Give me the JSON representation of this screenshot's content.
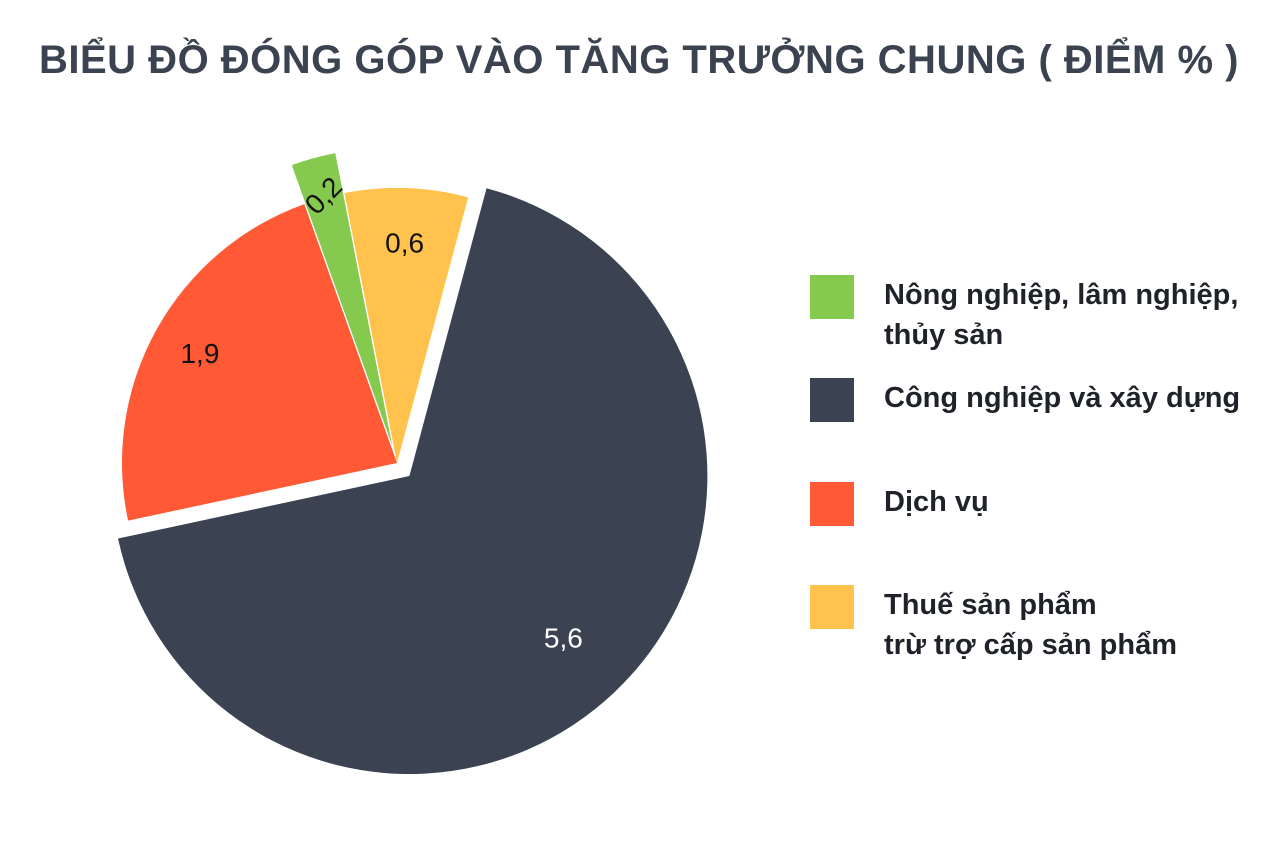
{
  "chart_data": {
    "type": "pie",
    "title": "BIỂU ĐỒ ĐÓNG GÓP VÀO TĂNG TRƯỞNG CHUNG ( ĐIỂM % )",
    "legend_position": "right",
    "slices": [
      {
        "name": "Công nghiệp và xây dựng",
        "value": 5.6,
        "label": "5,6",
        "color": "#3b4352",
        "label_color": "#ffffff",
        "exploded": true
      },
      {
        "name": "Dịch vụ",
        "value": 1.9,
        "label": "1,9",
        "color": "#ff5a35",
        "label_color": "#111111",
        "exploded": false
      },
      {
        "name": "Nông nghiệp, lâm nghiệp, thủy sản",
        "value": 0.2,
        "label": "0,2",
        "color": "#86c94f",
        "label_color": "#111111",
        "exploded": true
      },
      {
        "name": "Thuế sản phẩm trừ trợ cấp sản phẩm",
        "value": 0.6,
        "label": "0,6",
        "color": "#ffc24c",
        "label_color": "#111111",
        "exploded": false
      }
    ]
  },
  "legend": [
    {
      "lines": [
        "Nông nghiệp, lâm nghiệp,",
        "thủy sản"
      ],
      "color": "#86c94f"
    },
    {
      "lines": [
        "Công nghiệp và xây dựng"
      ],
      "color": "#3b4352"
    },
    {
      "lines": [
        "Dịch vụ"
      ],
      "color": "#ff5a35"
    },
    {
      "lines": [
        "Thuế sản phẩm",
        "trừ trợ cấp sản phẩm"
      ],
      "color": "#ffc24c"
    }
  ]
}
